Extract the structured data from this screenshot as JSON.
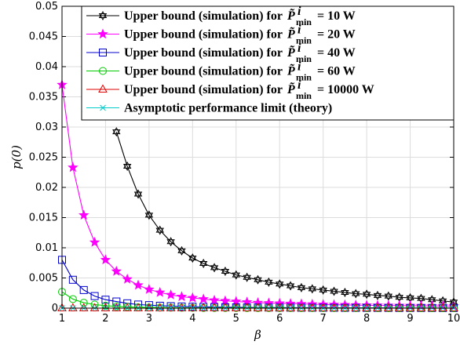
{
  "chart_data": {
    "type": "line",
    "xlabel": "β",
    "ylabel": "p(0)",
    "xlim": [
      1,
      10
    ],
    "ylim": [
      0,
      0.05
    ],
    "xticks": [
      "1",
      "2",
      "3",
      "4",
      "5",
      "6",
      "7",
      "8",
      "9",
      "10"
    ],
    "yticks": [
      "0",
      "0.005",
      "0.01",
      "0.015",
      "0.02",
      "0.025",
      "0.03",
      "0.035",
      "0.04",
      "0.045",
      "0.05"
    ],
    "grid": true,
    "legend_position": "top-right",
    "series": [
      {
        "name": "Upper bound (simulation) for P̃ⁱmin = 10 W",
        "legend_prefix": "Upper bound (simulation) for",
        "legend_value": "= 10 W",
        "color": "#000000",
        "marker": "hexagram",
        "x": [
          2.25,
          2.5,
          2.75,
          3,
          3.25,
          3.5,
          3.75,
          4,
          4.25,
          4.5,
          4.75,
          5,
          5.25,
          5.5,
          5.75,
          6,
          6.25,
          6.5,
          6.75,
          7,
          7.25,
          7.5,
          7.75,
          8,
          8.25,
          8.5,
          8.75,
          9,
          9.25,
          9.5,
          9.75,
          10
        ],
        "y": [
          0.0292,
          0.0235,
          0.0189,
          0.0154,
          0.0129,
          0.011,
          0.0095,
          0.0083,
          0.0074,
          0.0067,
          0.0061,
          0.0055,
          0.0051,
          0.0047,
          0.0043,
          0.004,
          0.0037,
          0.0034,
          0.0032,
          0.003,
          0.0028,
          0.0026,
          0.0024,
          0.0023,
          0.0021,
          0.002,
          0.0018,
          0.0017,
          0.0016,
          0.0014,
          0.0012,
          0.001
        ]
      },
      {
        "name": "Upper bound (simulation) for P̃ⁱmin = 20 W",
        "legend_prefix": "Upper bound (simulation) for",
        "legend_value": "= 20 W",
        "color": "#ff00ff",
        "marker": "star",
        "x": [
          1,
          1.25,
          1.5,
          1.75,
          2,
          2.25,
          2.5,
          2.75,
          3,
          3.25,
          3.5,
          3.75,
          4,
          4.25,
          4.5,
          4.75,
          5,
          5.25,
          5.5,
          5.75,
          6,
          6.25,
          6.5,
          6.75,
          7,
          7.25,
          7.5,
          7.75,
          8,
          8.25,
          8.5,
          8.75,
          9,
          9.25,
          9.5,
          9.75,
          10
        ],
        "y": [
          0.037,
          0.0233,
          0.0154,
          0.0109,
          0.008,
          0.0061,
          0.0048,
          0.0038,
          0.0031,
          0.0026,
          0.0022,
          0.0019,
          0.0017,
          0.0015,
          0.0013,
          0.0012,
          0.0011,
          0.001,
          0.0009,
          0.00085,
          0.0008,
          0.00075,
          0.0007,
          0.00065,
          0.0006,
          0.00057,
          0.00054,
          0.0005,
          0.00047,
          0.00045,
          0.00043,
          0.00041,
          0.0004,
          0.00038,
          0.00036,
          0.00035,
          0.00034
        ]
      },
      {
        "name": "Upper bound (simulation) for P̃ⁱmin = 40 W",
        "legend_prefix": "Upper bound (simulation) for",
        "legend_value": "= 40 W",
        "color": "#0000cc",
        "marker": "square",
        "x": [
          1,
          1.25,
          1.5,
          1.75,
          2,
          2.25,
          2.5,
          2.75,
          3,
          3.25,
          3.5,
          3.75,
          4,
          4.25,
          4.5,
          4.75,
          5,
          5.25,
          5.5,
          5.75,
          6,
          6.25,
          6.5,
          6.75,
          7,
          7.25,
          7.5,
          7.75,
          8,
          8.25,
          8.5,
          8.75,
          9,
          9.25,
          9.5,
          9.75,
          10
        ],
        "y": [
          0.008,
          0.0047,
          0.003,
          0.002,
          0.0014,
          0.0011,
          0.0008,
          0.0006,
          0.0005,
          0.0004,
          0.00033,
          0.00028,
          0.00024,
          0.0002,
          0.00018,
          0.00016,
          0.00014,
          0.00012,
          0.00011,
          0.0001,
          9e-05,
          8e-05,
          7e-05,
          7e-05,
          6e-05,
          6e-05,
          5e-05,
          5e-05,
          4e-05,
          4e-05,
          4e-05,
          3e-05,
          3e-05,
          3e-05,
          3e-05,
          2e-05,
          2e-05
        ]
      },
      {
        "name": "Upper bound (simulation) for P̃ⁱmin = 60 W",
        "legend_prefix": "Upper bound (simulation) for",
        "legend_value": "= 60 W",
        "color": "#00cc00",
        "marker": "circle",
        "x": [
          1,
          1.25,
          1.5,
          1.75,
          2,
          2.25,
          2.5,
          2.75,
          3,
          3.25,
          3.5,
          3.75,
          4,
          4.25,
          4.5,
          4.75,
          5,
          5.25,
          5.5,
          5.75,
          6,
          6.25,
          6.5,
          6.75,
          7,
          7.25,
          7.5,
          7.75,
          8,
          8.25,
          8.5,
          8.75,
          9,
          9.25,
          9.5,
          9.75,
          10
        ],
        "y": [
          0.0027,
          0.0015,
          0.0009,
          0.0006,
          0.0004,
          0.0003,
          0.0002,
          0.00015,
          0.00012,
          0.0001,
          8e-05,
          6e-05,
          5e-05,
          4e-05,
          4e-05,
          3e-05,
          3e-05,
          2e-05,
          2e-05,
          2e-05,
          2e-05,
          1e-05,
          1e-05,
          1e-05,
          1e-05,
          1e-05,
          1e-05,
          1e-05,
          1e-05,
          1e-05,
          0,
          0,
          0,
          0,
          0,
          0,
          0
        ]
      },
      {
        "name": "Upper bound (simulation) for P̃ⁱmin = 10000 W",
        "legend_prefix": "Upper bound (simulation) for",
        "legend_value": "= 10000 W",
        "color": "#e00000",
        "marker": "triangle",
        "x": [
          1,
          1.25,
          1.5,
          1.75,
          2,
          2.25,
          2.5,
          2.75,
          3,
          3.25,
          3.5,
          3.75,
          4,
          4.25,
          4.5,
          4.75,
          5,
          5.25,
          5.5,
          5.75,
          6,
          6.25,
          6.5,
          6.75,
          7,
          7.25,
          7.5,
          7.75,
          8,
          8.25,
          8.5,
          8.75,
          9,
          9.25,
          9.5,
          9.75,
          10
        ],
        "y": [
          0,
          0,
          0,
          0,
          0,
          0,
          0,
          0,
          0,
          0,
          0,
          0,
          0,
          0,
          0,
          0,
          0,
          0,
          0,
          0,
          0,
          0,
          0,
          0,
          0,
          0,
          0,
          0,
          0,
          0,
          0,
          0,
          0,
          0,
          0,
          0,
          0
        ]
      },
      {
        "name": "Asymptotic performance limit (theory)",
        "legend_prefix": "Asymptotic performance limit (theory)",
        "legend_value": "",
        "color": "#00cccc",
        "marker": "x",
        "x": [
          1,
          1.25,
          1.5,
          1.75,
          2,
          2.25,
          2.5,
          2.75,
          3,
          3.25,
          3.5,
          3.75,
          4,
          4.25,
          4.5,
          4.75,
          5,
          5.25,
          5.5,
          5.75,
          6,
          6.25,
          6.5,
          6.75,
          7,
          7.25,
          7.5,
          7.75,
          8,
          8.25,
          8.5,
          8.75,
          9,
          9.25,
          9.5,
          9.75,
          10
        ],
        "y": [
          0,
          0,
          0,
          0,
          0,
          0,
          0,
          0,
          0,
          0,
          0,
          0,
          0,
          0,
          0,
          0,
          0,
          0,
          0,
          0,
          0,
          0,
          0,
          0,
          0,
          0,
          0,
          0,
          0,
          0,
          0,
          0,
          0,
          0,
          0,
          0,
          0
        ]
      }
    ],
    "legend_symbol": "P̃",
    "legend_sup": "i",
    "legend_sub": "min"
  }
}
